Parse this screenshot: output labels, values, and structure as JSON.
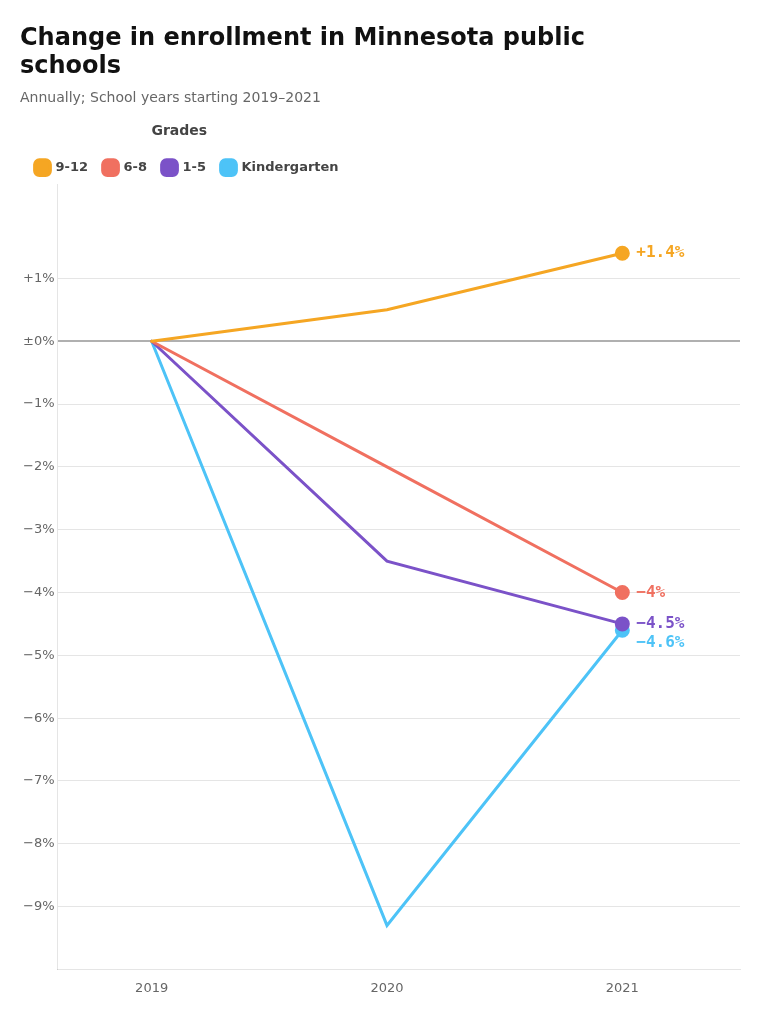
{
  "chart_data": {
    "type": "line",
    "title": [
      "Change in enrollment in Minnesota public",
      "schools"
    ],
    "subtitle": "Annually; School years starting 2019–2021",
    "legend_title": "Grades",
    "legend": "top",
    "grid": true,
    "x": [
      2019,
      2020,
      2021
    ],
    "xlim": [
      2018.6,
      2021.5
    ],
    "xticks": [
      2019,
      2020,
      2021
    ],
    "ylim": [
      -10.0,
      2.5
    ],
    "yticks": [
      {
        "value": 1,
        "label": "+1%"
      },
      {
        "value": 0,
        "label": "±0%"
      },
      {
        "value": -1,
        "label": "−1%"
      },
      {
        "value": -2,
        "label": "−2%"
      },
      {
        "value": -3,
        "label": "−3%"
      },
      {
        "value": -4,
        "label": "−4%"
      },
      {
        "value": -5,
        "label": "−5%"
      },
      {
        "value": -6,
        "label": "−6%"
      },
      {
        "value": -7,
        "label": "−7%"
      },
      {
        "value": -8,
        "label": "−8%"
      },
      {
        "value": -9,
        "label": "−9%"
      }
    ],
    "series": [
      {
        "name": "Kindergarten",
        "color": "#4dc3f7",
        "values": [
          0.0,
          -9.3,
          -4.6
        ]
      },
      {
        "name": "1-5",
        "color": "#7b52c8",
        "values": [
          0.0,
          -3.5,
          -4.5
        ]
      },
      {
        "name": "6-8",
        "color": "#f07060",
        "values": [
          0.0,
          -2.0,
          -4.0
        ]
      },
      {
        "name": "9-12",
        "color": "#f5a623",
        "values": [
          0.0,
          0.5,
          1.4
        ]
      }
    ],
    "annotations": [
      {
        "x": 2021,
        "y": 1.4,
        "text": "+1.4%",
        "color": "#f5a623"
      },
      {
        "x": 2021,
        "y": -4.0,
        "text": "−4%",
        "color": "#f07060"
      },
      {
        "x": 2021,
        "y": -4.5,
        "text": "−4.5%",
        "color": "#7b52c8"
      },
      {
        "x": 2021,
        "y": -4.6,
        "text": "−4.6%",
        "color": "#4dc3f7"
      }
    ]
  }
}
